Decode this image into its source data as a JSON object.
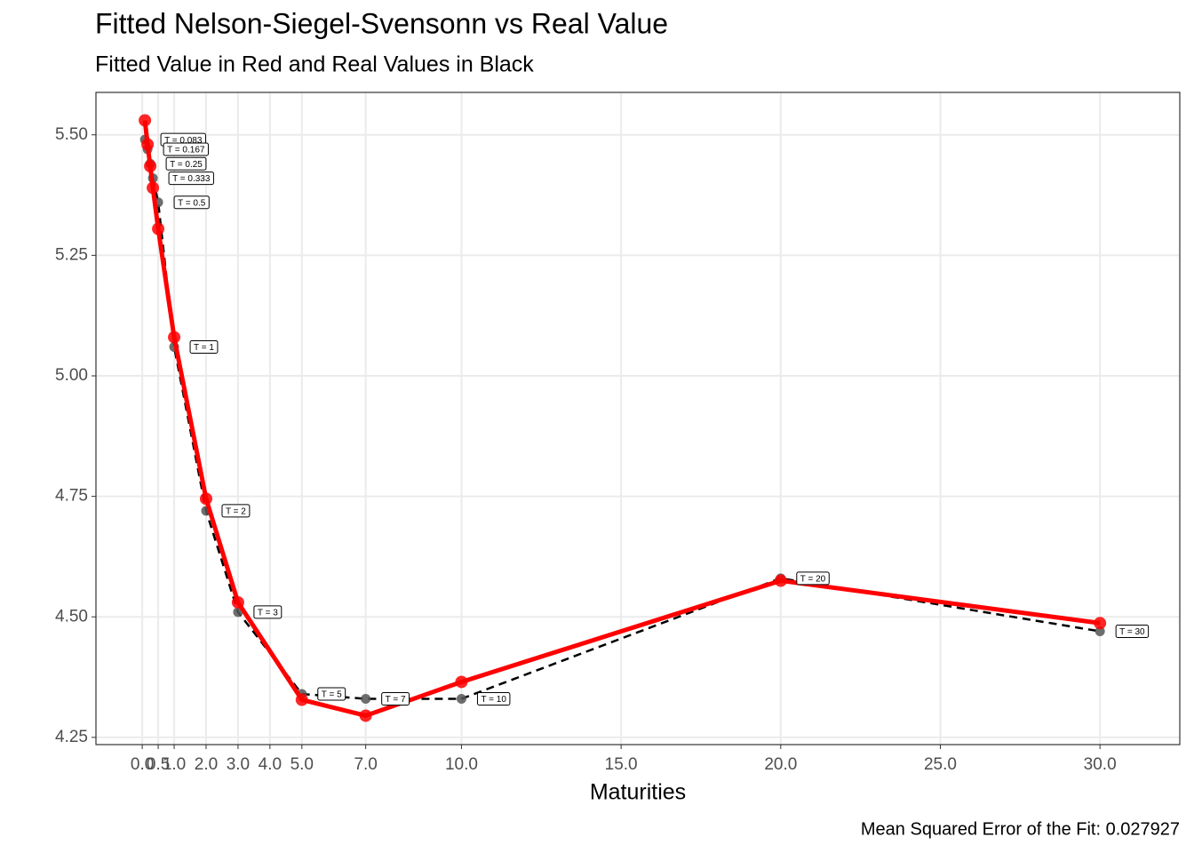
{
  "chart_data": {
    "type": "line",
    "title": "Fitted Nelson-Siegel-Svensonn vs Real Value",
    "subtitle": "Fitted Value in Red and Real Values in Black",
    "x_label": "Maturities",
    "caption": "Mean Squared Error of the Fit: 0.027927",
    "x": [
      0.083,
      0.167,
      0.25,
      0.333,
      0.5,
      1,
      2,
      3,
      5,
      7,
      10,
      20,
      30
    ],
    "point_labels": [
      "T = 0.083",
      "T = 0.167",
      "T = 0.25",
      "T = 0.333",
      "T = 0.5",
      "T = 1",
      "T = 2",
      "T = 3",
      "T = 5",
      "T = 7",
      "T = 10",
      "T = 20",
      "T = 30"
    ],
    "series": [
      {
        "color": "#000000",
        "line_style": "dashed",
        "values": [
          5.49,
          5.47,
          5.44,
          5.41,
          5.36,
          5.06,
          4.72,
          4.51,
          4.34,
          4.33,
          4.33,
          4.58,
          4.47
        ]
      },
      {
        "color": "#ff0000",
        "line_style": "solid",
        "values": [
          5.53,
          5.48,
          5.435,
          5.39,
          5.305,
          5.08,
          4.745,
          4.53,
          4.328,
          4.295,
          4.365,
          4.575,
          4.487
        ]
      }
    ],
    "xlim": [
      -1.45,
      32.5
    ],
    "xticks": [
      {
        "value": 0,
        "label": "0.0"
      },
      {
        "value": 0.5,
        "label": "0.5"
      },
      {
        "value": 1,
        "label": "1.0"
      },
      {
        "value": 2,
        "label": "2.0"
      },
      {
        "value": 3,
        "label": "3.0"
      },
      {
        "value": 4,
        "label": "4.0"
      },
      {
        "value": 5,
        "label": "5.0"
      },
      {
        "value": 7,
        "label": "7.0"
      },
      {
        "value": 10,
        "label": "10.0"
      },
      {
        "value": 15,
        "label": "15.0"
      },
      {
        "value": 20,
        "label": "20.0"
      },
      {
        "value": 25,
        "label": "25.0"
      },
      {
        "value": 30,
        "label": "30.0"
      }
    ],
    "ylim": [
      4.235,
      5.588
    ],
    "yticks": [
      {
        "value": 4.25,
        "label": "4.25"
      },
      {
        "value": 4.5,
        "label": "4.50"
      },
      {
        "value": 4.75,
        "label": "4.75"
      },
      {
        "value": 5,
        "label": "5.00"
      },
      {
        "value": 5.25,
        "label": "5.25"
      },
      {
        "value": 5.5,
        "label": "5.50"
      }
    ],
    "grid": true
  }
}
